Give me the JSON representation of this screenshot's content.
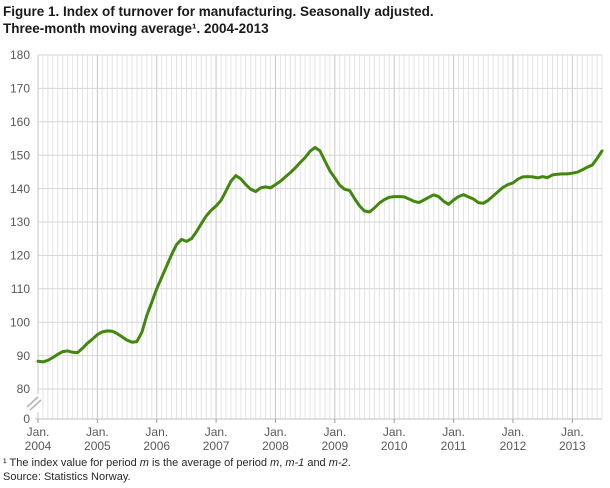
{
  "title": {
    "line1": "Figure 1. Index of turnover for manufacturing. Seasonally adjusted.",
    "line2": "Three-month moving average¹. 2004-2013"
  },
  "footnote": {
    "segments": [
      {
        "text": "¹ The index value for period ",
        "italic": false
      },
      {
        "text": "m",
        "italic": true
      },
      {
        "text": " is the average of period ",
        "italic": false
      },
      {
        "text": "m",
        "italic": true
      },
      {
        "text": ", ",
        "italic": false
      },
      {
        "text": "m-1",
        "italic": true
      },
      {
        "text": " and ",
        "italic": false
      },
      {
        "text": "m-2",
        "italic": true
      },
      {
        "text": ".",
        "italic": false
      }
    ],
    "source": "Source: Statistics Norway."
  },
  "colors": {
    "line_green": "#43870e",
    "minor_grid": "#e4e4e4",
    "major_grid": "#c7c7c7",
    "horizontal_grid": "#d5d5d5",
    "axis_line": "#c2c2c2",
    "tick": "#9a9a9a",
    "break_mark": "#b5b5b5",
    "label_gray": "#58595b"
  },
  "chart_data": {
    "type": "line",
    "title": "Index of turnover for manufacturing. Seasonally adjusted. Three-month moving average. 2004-2013",
    "xlabel": "",
    "ylabel": "",
    "x_frequency": "monthly",
    "x_range": [
      "2004-01",
      "2013-07"
    ],
    "x_tick_month_label": "Jan.",
    "x_tick_years": [
      "2004",
      "2005",
      "2006",
      "2007",
      "2008",
      "2009",
      "2010",
      "2011",
      "2012",
      "2013"
    ],
    "y_ticks": [
      0,
      80,
      90,
      100,
      110,
      120,
      130,
      140,
      150,
      160,
      170,
      180
    ],
    "ylim": [
      80,
      180
    ],
    "y_axis_break_between": [
      0,
      80
    ],
    "grid": {
      "minor_vertical": "monthly",
      "major_vertical": "yearly",
      "horizontal": "every 10 units"
    },
    "legend": "none",
    "series": [
      {
        "name": "Index of turnover, manufacturing",
        "color": "#43870e",
        "values": [
          88.3,
          88.1,
          88.6,
          89.4,
          90.4,
          91.2,
          91.4,
          91.0,
          90.9,
          92.2,
          93.7,
          94.9,
          96.3,
          97.1,
          97.4,
          97.3,
          96.6,
          95.6,
          94.6,
          94.0,
          94.2,
          97.0,
          102.0,
          106.0,
          110.0,
          113.4,
          116.8,
          120.2,
          123.2,
          124.8,
          124.2,
          125.0,
          127.0,
          129.5,
          131.8,
          133.5,
          134.8,
          136.5,
          139.3,
          142.2,
          143.9,
          142.9,
          141.2,
          139.8,
          139.1,
          140.2,
          140.5,
          140.2,
          141.2,
          142.2,
          143.5,
          144.8,
          146.2,
          147.8,
          149.3,
          151.2,
          152.3,
          151.3,
          148.3,
          145.3,
          143.2,
          141.0,
          139.8,
          139.4,
          137.0,
          134.8,
          133.3,
          133.0,
          134.2,
          135.7,
          136.7,
          137.4,
          137.6,
          137.6,
          137.5,
          136.9,
          136.2,
          135.8,
          136.6,
          137.4,
          138.1,
          137.6,
          136.2,
          135.3,
          136.6,
          137.6,
          138.2,
          137.5,
          136.9,
          135.8,
          135.6,
          136.5,
          137.8,
          139.1,
          140.4,
          141.2,
          141.7,
          142.8,
          143.5,
          143.6,
          143.5,
          143.2,
          143.6,
          143.3,
          144.1,
          144.3,
          144.4,
          144.4,
          144.6,
          144.9,
          145.6,
          146.4,
          147.0,
          149.0,
          151.3
        ]
      }
    ]
  }
}
